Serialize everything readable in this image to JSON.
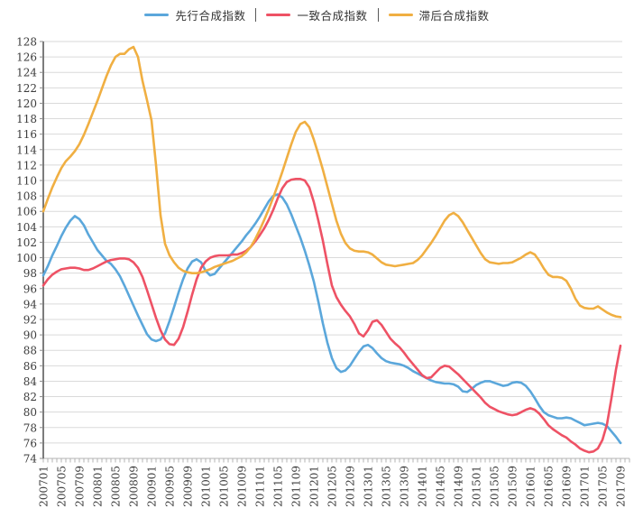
{
  "legend": {
    "items": [
      {
        "label": "先行合成指数"
      },
      {
        "label": "一致合成指数"
      },
      {
        "label": "滞后合成指数"
      }
    ]
  },
  "chart_data": {
    "type": "line",
    "title": "",
    "xlabel": "",
    "ylabel": "",
    "ylim": [
      74,
      128
    ],
    "y_tick_step": 2,
    "x_tick_every": 4,
    "grid": true,
    "legend_position": "top",
    "styles": {
      "grid_color": "#dadada",
      "axis_color": "#262626",
      "tick_color": "#8c8c8c",
      "bottom_axis_color": "#b3b3b3",
      "label_color": "#3c3c3c"
    },
    "x": [
      "200701",
      "200702",
      "200703",
      "200704",
      "200705",
      "200706",
      "200707",
      "200708",
      "200709",
      "200710",
      "200711",
      "200712",
      "200801",
      "200802",
      "200803",
      "200804",
      "200805",
      "200806",
      "200807",
      "200808",
      "200809",
      "200810",
      "200811",
      "200812",
      "200901",
      "200902",
      "200903",
      "200904",
      "200905",
      "200906",
      "200907",
      "200908",
      "200909",
      "200910",
      "200911",
      "200912",
      "201001",
      "201002",
      "201003",
      "201004",
      "201005",
      "201006",
      "201007",
      "201008",
      "201009",
      "201010",
      "201011",
      "201012",
      "201101",
      "201102",
      "201103",
      "201104",
      "201105",
      "201106",
      "201107",
      "201108",
      "201109",
      "201110",
      "201111",
      "201112",
      "201201",
      "201202",
      "201203",
      "201204",
      "201205",
      "201206",
      "201207",
      "201208",
      "201209",
      "201210",
      "201211",
      "201212",
      "201301",
      "201302",
      "201303",
      "201304",
      "201305",
      "201306",
      "201307",
      "201308",
      "201309",
      "201310",
      "201311",
      "201312",
      "201401",
      "201402",
      "201403",
      "201404",
      "201405",
      "201406",
      "201407",
      "201408",
      "201409",
      "201410",
      "201411",
      "201412",
      "201501",
      "201502",
      "201503",
      "201504",
      "201505",
      "201506",
      "201507",
      "201508",
      "201509",
      "201510",
      "201511",
      "201512",
      "201601",
      "201602",
      "201603",
      "201604",
      "201605",
      "201606",
      "201607",
      "201608",
      "201609",
      "201610",
      "201611",
      "201612",
      "201701",
      "201702",
      "201703",
      "201704",
      "201705",
      "201706",
      "201707",
      "201708",
      "201709"
    ],
    "series": [
      {
        "name": "先行合成指数",
        "color": "#5ba7db",
        "values": [
          97.7,
          98.9,
          100.3,
          101.5,
          102.8,
          103.9,
          104.8,
          105.4,
          105.0,
          104.2,
          103.0,
          102.0,
          101.0,
          100.3,
          99.6,
          99.2,
          98.5,
          97.6,
          96.4,
          95.1,
          93.8,
          92.5,
          91.3,
          90.1,
          89.4,
          89.2,
          89.4,
          90.2,
          91.8,
          93.6,
          95.5,
          97.2,
          98.6,
          99.5,
          99.8,
          99.4,
          98.3,
          97.7,
          97.9,
          98.6,
          99.3,
          100.0,
          100.7,
          101.4,
          102.1,
          102.9,
          103.6,
          104.4,
          105.3,
          106.3,
          107.3,
          108.0,
          108.2,
          107.8,
          106.9,
          105.6,
          104.1,
          102.6,
          100.9,
          99.0,
          96.9,
          94.3,
          91.5,
          89.0,
          87.0,
          85.7,
          85.2,
          85.4,
          86.0,
          86.9,
          87.8,
          88.5,
          88.7,
          88.3,
          87.6,
          87.0,
          86.6,
          86.4,
          86.3,
          86.2,
          86.0,
          85.7,
          85.3,
          85.0,
          84.7,
          84.4,
          84.1,
          83.9,
          83.8,
          83.7,
          83.7,
          83.6,
          83.3,
          82.7,
          82.6,
          83.0,
          83.5,
          83.8,
          84.0,
          84.0,
          83.8,
          83.6,
          83.4,
          83.5,
          83.8,
          83.9,
          83.8,
          83.4,
          82.7,
          81.8,
          80.8,
          80.0,
          79.6,
          79.4,
          79.2,
          79.2,
          79.3,
          79.2,
          78.9,
          78.6,
          78.3,
          78.4,
          78.5,
          78.6,
          78.5,
          78.2,
          77.5,
          76.8,
          76.0
        ]
      },
      {
        "name": "一致合成指数",
        "color": "#ee5265",
        "values": [
          96.4,
          97.2,
          97.8,
          98.2,
          98.5,
          98.6,
          98.7,
          98.7,
          98.6,
          98.4,
          98.4,
          98.6,
          98.9,
          99.2,
          99.5,
          99.7,
          99.8,
          99.9,
          99.9,
          99.8,
          99.4,
          98.7,
          97.5,
          95.8,
          94.0,
          92.2,
          90.6,
          89.4,
          88.8,
          88.7,
          89.5,
          91.0,
          93.0,
          95.2,
          97.2,
          98.7,
          99.5,
          100.0,
          100.2,
          100.3,
          100.3,
          100.3,
          100.4,
          100.4,
          100.6,
          100.9,
          101.4,
          102.1,
          102.9,
          103.8,
          104.9,
          106.2,
          107.7,
          109.0,
          109.8,
          110.1,
          110.2,
          110.2,
          110.0,
          109.1,
          107.2,
          104.8,
          102.2,
          99.2,
          96.4,
          94.9,
          93.9,
          93.1,
          92.4,
          91.4,
          90.2,
          89.8,
          90.6,
          91.7,
          91.9,
          91.3,
          90.4,
          89.5,
          88.9,
          88.4,
          87.7,
          86.9,
          86.2,
          85.5,
          84.8,
          84.4,
          84.5,
          85.1,
          85.7,
          86.0,
          85.9,
          85.4,
          84.9,
          84.3,
          83.7,
          83.1,
          82.5,
          81.9,
          81.2,
          80.7,
          80.4,
          80.1,
          79.9,
          79.7,
          79.6,
          79.7,
          80.0,
          80.3,
          80.5,
          80.3,
          79.8,
          79.1,
          78.3,
          77.8,
          77.4,
          77.0,
          76.7,
          76.2,
          75.8,
          75.3,
          75.0,
          74.8,
          74.9,
          75.3,
          76.4,
          78.4,
          81.8,
          85.5,
          88.6
        ]
      },
      {
        "name": "滞后合成指数",
        "color": "#f0af42",
        "values": [
          106.0,
          107.6,
          109.1,
          110.4,
          111.6,
          112.5,
          113.1,
          113.8,
          114.7,
          115.9,
          117.3,
          118.8,
          120.3,
          121.9,
          123.5,
          124.9,
          126.0,
          126.4,
          126.4,
          127.0,
          127.3,
          126.0,
          122.9,
          120.4,
          117.8,
          112.0,
          105.5,
          101.8,
          100.3,
          99.4,
          98.7,
          98.3,
          98.1,
          98.0,
          98.0,
          98.1,
          98.3,
          98.5,
          98.8,
          99.0,
          99.2,
          99.4,
          99.6,
          99.9,
          100.2,
          100.7,
          101.4,
          102.4,
          103.6,
          104.9,
          106.3,
          107.8,
          109.4,
          111.1,
          112.9,
          114.7,
          116.3,
          117.3,
          117.6,
          116.9,
          115.3,
          113.4,
          111.4,
          109.2,
          107.0,
          104.8,
          103.1,
          101.9,
          101.2,
          100.9,
          100.8,
          100.8,
          100.7,
          100.4,
          99.9,
          99.4,
          99.1,
          99.0,
          98.9,
          99.0,
          99.1,
          99.2,
          99.3,
          99.7,
          100.3,
          101.1,
          101.9,
          102.8,
          103.8,
          104.8,
          105.5,
          105.8,
          105.4,
          104.6,
          103.6,
          102.6,
          101.6,
          100.6,
          99.8,
          99.4,
          99.3,
          99.2,
          99.3,
          99.3,
          99.4,
          99.7,
          100.0,
          100.4,
          100.7,
          100.4,
          99.6,
          98.6,
          97.8,
          97.5,
          97.5,
          97.4,
          97.0,
          96.0,
          94.7,
          93.8,
          93.5,
          93.4,
          93.4,
          93.7,
          93.3,
          92.9,
          92.6,
          92.4,
          92.3
        ]
      }
    ]
  }
}
